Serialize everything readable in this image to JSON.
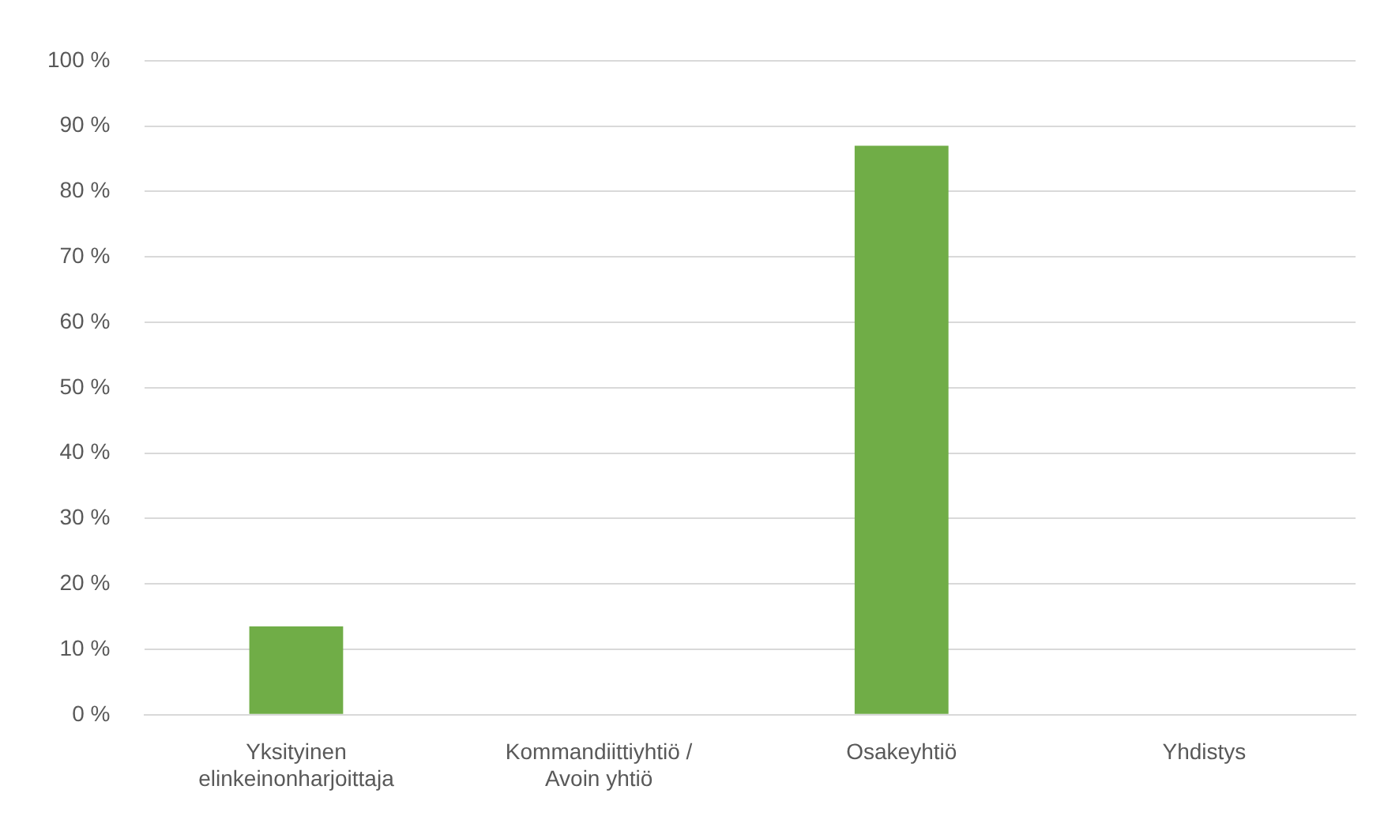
{
  "chart_data": {
    "type": "bar",
    "categories": [
      "Yksityinen elinkeinonharjoittaja",
      "Kommandiittiyhtiö / Avoin yhtiö",
      "Osakeyhtiö",
      "Yhdistys"
    ],
    "values": [
      13.5,
      0,
      87,
      0
    ],
    "color": "#70ad47",
    "ylim": [
      0,
      100
    ],
    "yticks": [
      {
        "value": 0,
        "label": "0 %"
      },
      {
        "value": 10,
        "label": "10 %"
      },
      {
        "value": 20,
        "label": "20 %"
      },
      {
        "value": 30,
        "label": "30 %"
      },
      {
        "value": 40,
        "label": "40 %"
      },
      {
        "value": 50,
        "label": "50 %"
      },
      {
        "value": 60,
        "label": "60 %"
      },
      {
        "value": 70,
        "label": "70 %"
      },
      {
        "value": 80,
        "label": "80 %"
      },
      {
        "value": 90,
        "label": "90 %"
      },
      {
        "value": 100,
        "label": "100 %"
      }
    ],
    "grid": "y",
    "legend": false
  }
}
